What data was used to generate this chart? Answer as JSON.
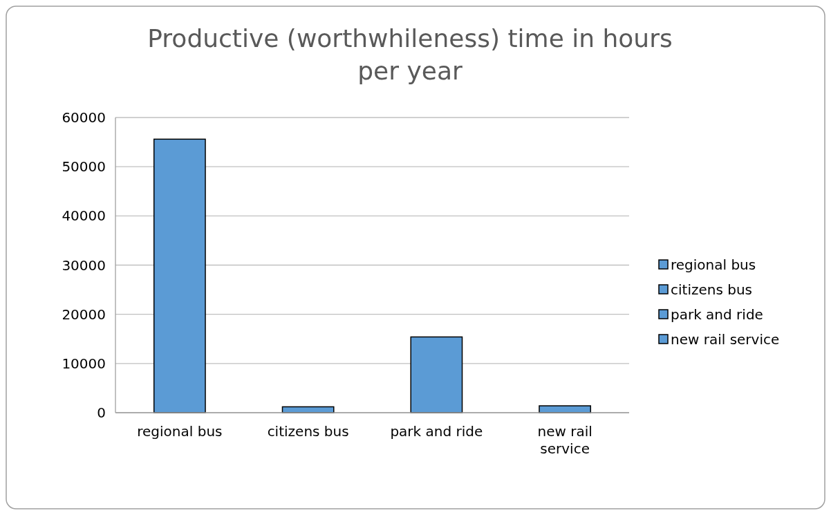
{
  "chart_data": {
    "type": "bar",
    "title": "Productive (worthwhileness) time in hours per year",
    "categories": [
      "regional bus",
      "citizens bus",
      "park and ride",
      "new rail service"
    ],
    "series": [
      {
        "name": "regional bus",
        "color": "#5b9bd5",
        "values": [
          55600,
          null,
          null,
          null
        ]
      },
      {
        "name": "citizens bus",
        "color": "#5b9bd5",
        "values": [
          null,
          1200,
          null,
          null
        ]
      },
      {
        "name": "park and ride",
        "color": "#5b9bd5",
        "values": [
          null,
          null,
          15400,
          null
        ]
      },
      {
        "name": "new rail service",
        "color": "#5b9bd5",
        "values": [
          null,
          null,
          null,
          1400
        ]
      }
    ],
    "ylim": [
      0,
      60000
    ],
    "yticks": [
      0,
      10000,
      20000,
      30000,
      40000,
      50000,
      60000
    ],
    "grid": "y",
    "legend": "right"
  }
}
